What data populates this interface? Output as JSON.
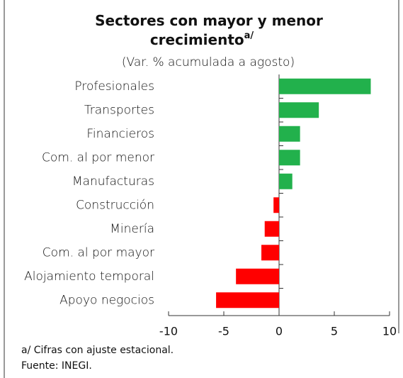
{
  "chart_data": {
    "type": "hbar",
    "title": "Sectores con mayor y menor crecimiento",
    "title_superscript": "a/",
    "subtitle": "(Var. % acumulada a agosto)",
    "categories": [
      "Profesionales",
      "Transportes",
      "Financieros",
      "Com. al por menor",
      "Manufacturas",
      "Construcción",
      "Minería",
      "Com. al por mayor",
      "Alojamiento temporal",
      "Apoyo negocios"
    ],
    "values": [
      8.3,
      3.6,
      1.9,
      1.9,
      1.2,
      -0.5,
      -1.3,
      -1.6,
      -3.9,
      -5.7
    ],
    "positive_color": "#22b14c",
    "negative_color": "#ff0000",
    "xlim": [
      -10,
      10
    ],
    "xticks": [
      -10,
      -5,
      0,
      5,
      10
    ],
    "notes": [
      "a/ Cifras con ajuste estacional.",
      "Fuente: INEGI."
    ]
  }
}
